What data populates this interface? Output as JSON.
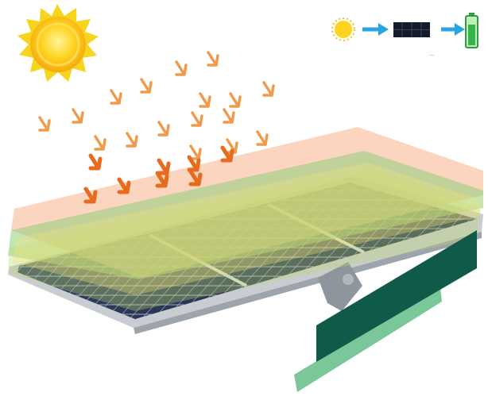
{
  "legend": {
    "steps": [
      "sun-icon",
      "arrow-right-icon",
      "solar-panel-icon",
      "arrow-right-icon",
      "battery-icon"
    ],
    "caption": "—"
  },
  "colors": {
    "sun_core": "#ffcc1a",
    "sun_rays": "#f6d21c",
    "ray_arrows": "#f09a4c",
    "ray_arrows_strong": "#e86a1c",
    "layer_orange": "#f7b38a",
    "layer_green": "#8fd07a",
    "layer_yellow": "#f3e27a",
    "panel_cell": "#2b3a5c",
    "panel_frame": "#c9cdd2",
    "stripe_dark": "#0f5a48",
    "stripe_light": "#7bc79a",
    "legend_arrow": "#2aa6de",
    "battery": "#36b34a"
  }
}
